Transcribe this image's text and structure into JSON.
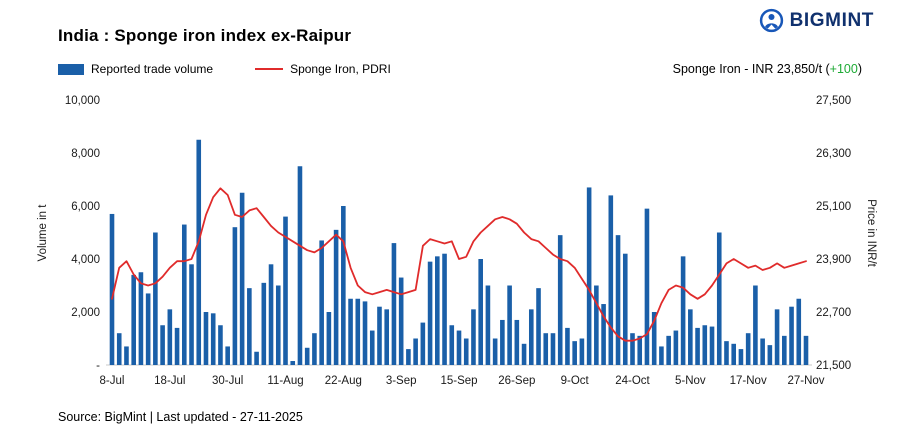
{
  "header": {
    "title": "India : Sponge iron index ex-Raipur",
    "brand": "BIGMINT"
  },
  "legend": {
    "volume": "Reported trade volume",
    "price": "Sponge Iron, PDRI"
  },
  "annotation": {
    "prefix": "Sponge Iron - INR 23,850/t (",
    "change": "+100",
    "suffix": ")"
  },
  "footer": {
    "source": "Source: BigMint | Last updated - 27-11-2025"
  },
  "colors": {
    "bar": "#1a5fa8",
    "line": "#e02b2b",
    "brand": "#10316e",
    "positive": "#1daa35"
  },
  "chart_data": {
    "type": "combo",
    "title": "India : Sponge iron index ex-Raipur",
    "grid": false,
    "legend_position": "top-left",
    "x_tick_labels": [
      "8-Jul",
      "18-Jul",
      "30-Jul",
      "11-Aug",
      "22-Aug",
      "3-Sep",
      "15-Sep",
      "26-Sep",
      "9-Oct",
      "24-Oct",
      "5-Nov",
      "17-Nov",
      "27-Nov"
    ],
    "x_tick_positions": [
      0,
      8,
      16,
      24,
      32,
      40,
      48,
      56,
      64,
      72,
      80,
      88,
      96
    ],
    "left_axis": {
      "label": "Volume in t",
      "min": 0,
      "max": 10000,
      "ticks": [
        "10,000",
        "8,000",
        "6,000",
        "4,000",
        "2,000",
        "-"
      ],
      "tick_values": [
        10000,
        8000,
        6000,
        4000,
        2000,
        0
      ]
    },
    "right_axis": {
      "label": "Price in INR/t",
      "min": 21500,
      "max": 27500,
      "ticks": [
        "27,500",
        "26,300",
        "25,100",
        "23,900",
        "22,700",
        "21,500"
      ],
      "tick_values": [
        27500,
        26300,
        25100,
        23900,
        22700,
        21500
      ]
    },
    "series": [
      {
        "name": "Reported trade volume",
        "type": "bar",
        "axis": "left",
        "color": "#1a5fa8",
        "values": [
          5700,
          1200,
          700,
          3400,
          3500,
          2700,
          5000,
          1500,
          2100,
          1400,
          5300,
          3800,
          8500,
          2000,
          1950,
          1500,
          700,
          5200,
          6500,
          2900,
          500,
          3100,
          3800,
          3000,
          5600,
          150,
          7500,
          650,
          1200,
          4700,
          2000,
          5100,
          6000,
          2500,
          2500,
          2400,
          1300,
          2200,
          2100,
          4600,
          3300,
          600,
          1000,
          1600,
          3900,
          4100,
          4200,
          1500,
          1300,
          1000,
          2100,
          4000,
          3000,
          1000,
          1700,
          3000,
          1700,
          800,
          2100,
          2900,
          1200,
          1200,
          4900,
          1400,
          900,
          1000,
          6700,
          3000,
          2300,
          6400,
          4900,
          4200,
          1200,
          1100,
          5900,
          2000,
          700,
          1100,
          1300,
          4100,
          2100,
          1400,
          1500,
          1450,
          5000,
          900,
          800,
          600,
          1200,
          3000,
          1000,
          750,
          2100,
          1100,
          2200,
          2500,
          1100
        ]
      },
      {
        "name": "Sponge Iron, PDRI",
        "type": "line",
        "axis": "right",
        "color": "#e02b2b",
        "values": [
          23000,
          23700,
          23850,
          23550,
          23350,
          23300,
          23350,
          23500,
          23700,
          23850,
          23850,
          23900,
          24300,
          24900,
          25300,
          25500,
          25350,
          24900,
          24850,
          25000,
          25050,
          24850,
          24650,
          24500,
          24400,
          24300,
          24200,
          24100,
          24050,
          24150,
          24300,
          24450,
          24300,
          23700,
          23300,
          23150,
          23100,
          23150,
          23200,
          23150,
          23100,
          23150,
          23200,
          24200,
          24350,
          24300,
          24250,
          24300,
          23900,
          23950,
          24300,
          24500,
          24650,
          24800,
          24850,
          24800,
          24700,
          24500,
          24350,
          24300,
          24150,
          24000,
          23900,
          23850,
          23700,
          23450,
          23200,
          22900,
          22600,
          22350,
          22150,
          22050,
          22050,
          22100,
          22200,
          22500,
          22900,
          23200,
          23300,
          23250,
          23100,
          23000,
          23100,
          23300,
          23550,
          23800,
          23900,
          23800,
          23700,
          23750,
          23650,
          23700,
          23800,
          23700,
          23750,
          23800,
          23850
        ]
      }
    ]
  }
}
